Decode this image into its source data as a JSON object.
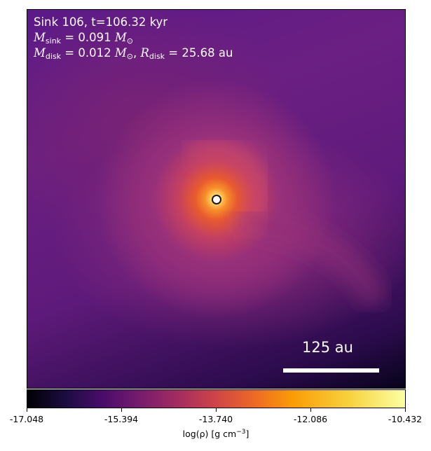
{
  "panel": {
    "title": "Sink 106, t=106.32 kyr",
    "sink_mass_label": "M",
    "sink_mass_sub": "sink",
    "sink_mass_value": " = 0.091 ",
    "sink_mass_unit": "M",
    "sink_mass_unit_sub": "⊙",
    "disk_mass_label": "M",
    "disk_mass_sub": "disk",
    "disk_mass_value": " = 0.012 ",
    "disk_mass_unit": "M",
    "disk_mass_unit_sub": "⊙",
    "disk_radius_sep": ", ",
    "disk_radius_label": "R",
    "disk_radius_sub": "disk",
    "disk_radius_value": " = 25.68 au",
    "scale_bar_label": "125 au",
    "colormap": "inferno"
  },
  "colorbar": {
    "ticks": [
      "-17.048",
      "-15.394",
      "-13.740",
      "-12.086",
      "-10.432"
    ],
    "label_prefix": "log(ρ) [g cm",
    "label_exp": "−3",
    "label_suffix": "]"
  },
  "colors": {
    "text_on_image": "#ffffff",
    "sink_marker_fill": "#ffffff",
    "sink_marker_edge": "#1a1a1a"
  }
}
